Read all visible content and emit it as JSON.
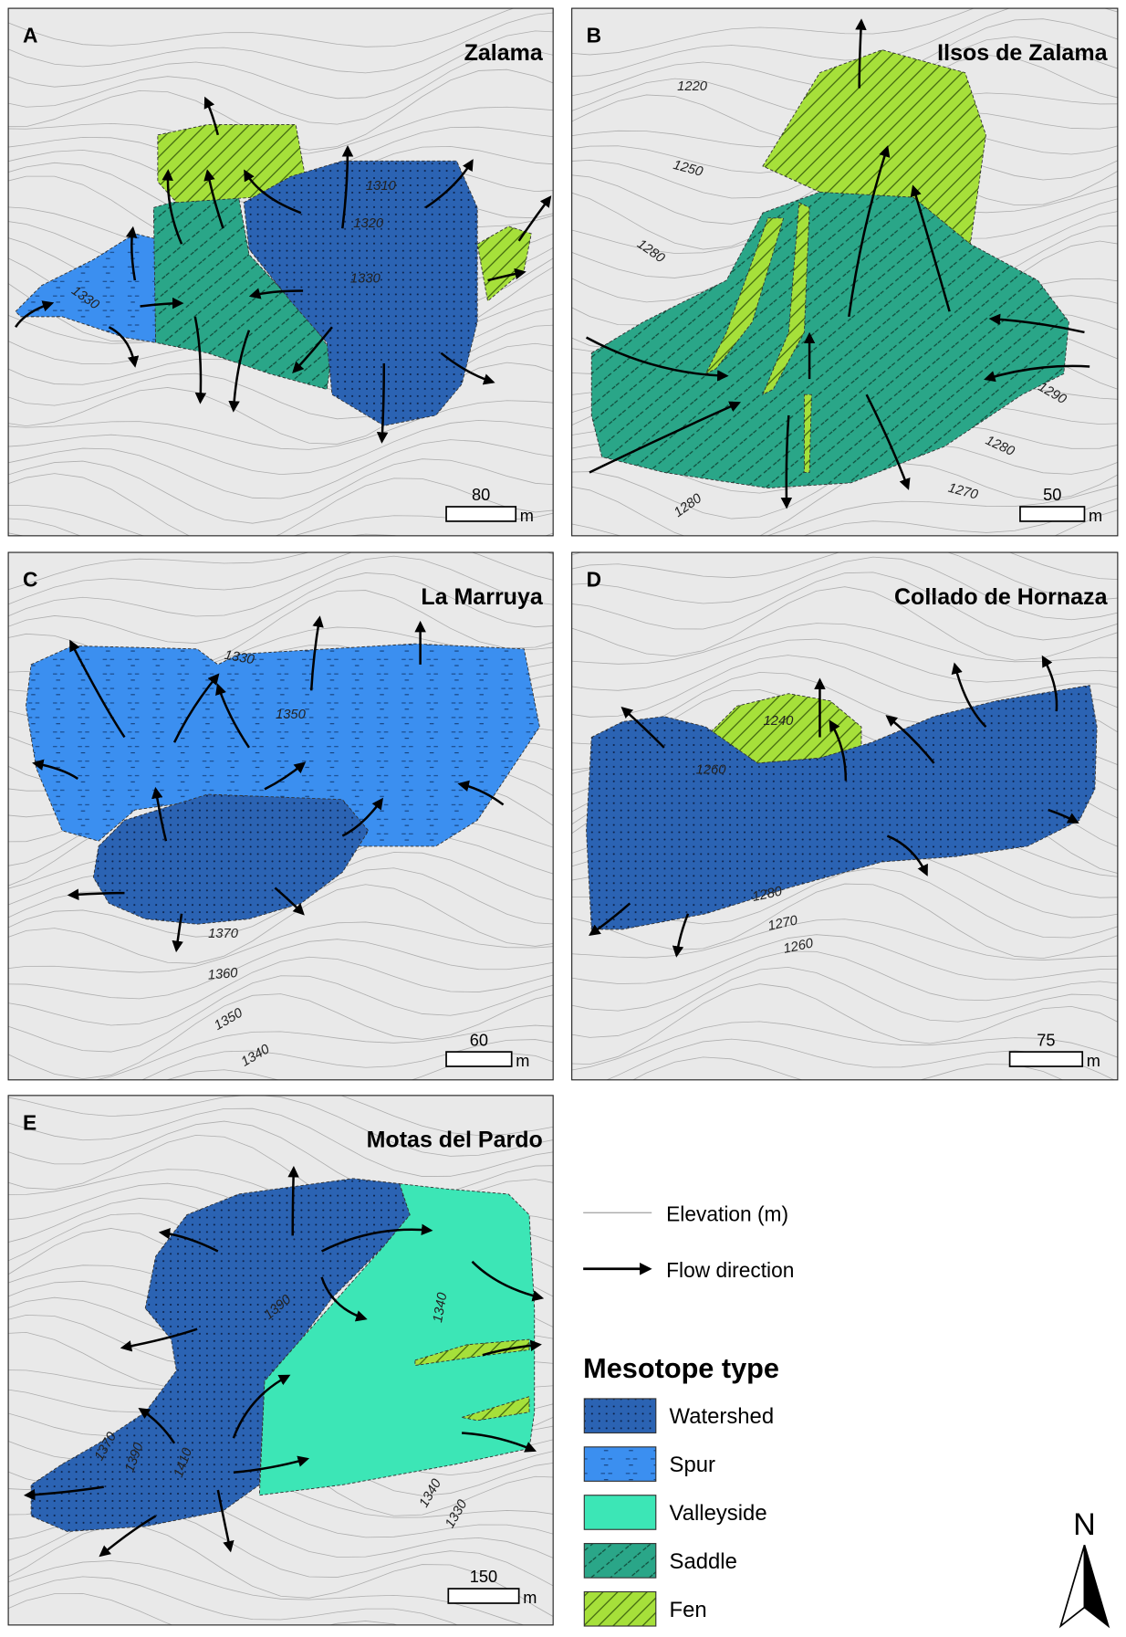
{
  "panels": [
    {
      "letter": "A",
      "title": "Zalama",
      "scale_value": "80",
      "scale_unit": "m",
      "contour_labels": [
        "1310",
        "1320",
        "1330",
        "1330"
      ]
    },
    {
      "letter": "B",
      "title": "Ilsos de Zalama",
      "scale_value": "50",
      "scale_unit": "m",
      "contour_labels": [
        "1220",
        "1250",
        "1280",
        "1290",
        "1280",
        "1270",
        "1280"
      ]
    },
    {
      "letter": "C",
      "title": "La Marruya",
      "scale_value": "60",
      "scale_unit": "m",
      "contour_labels": [
        "1330",
        "1350",
        "1370",
        "1360",
        "1350",
        "1340"
      ]
    },
    {
      "letter": "D",
      "title": "Collado de Hornaza",
      "scale_value": "75",
      "scale_unit": "m",
      "contour_labels": [
        "1240",
        "1260",
        "1280",
        "1270",
        "1260"
      ]
    },
    {
      "letter": "E",
      "title": "Motas del Pardo",
      "scale_value": "150",
      "scale_unit": "m",
      "contour_labels": [
        "1390",
        "1340",
        "1370",
        "1390",
        "1410",
        "1340",
        "1330"
      ]
    }
  ],
  "legend": {
    "elevation": "Elevation (m)",
    "flow": "Flow direction",
    "title": "Mesotope type",
    "items": [
      "Watershed",
      "Spur",
      "Valleyside",
      "Saddle",
      "Fen"
    ]
  },
  "north": "N"
}
